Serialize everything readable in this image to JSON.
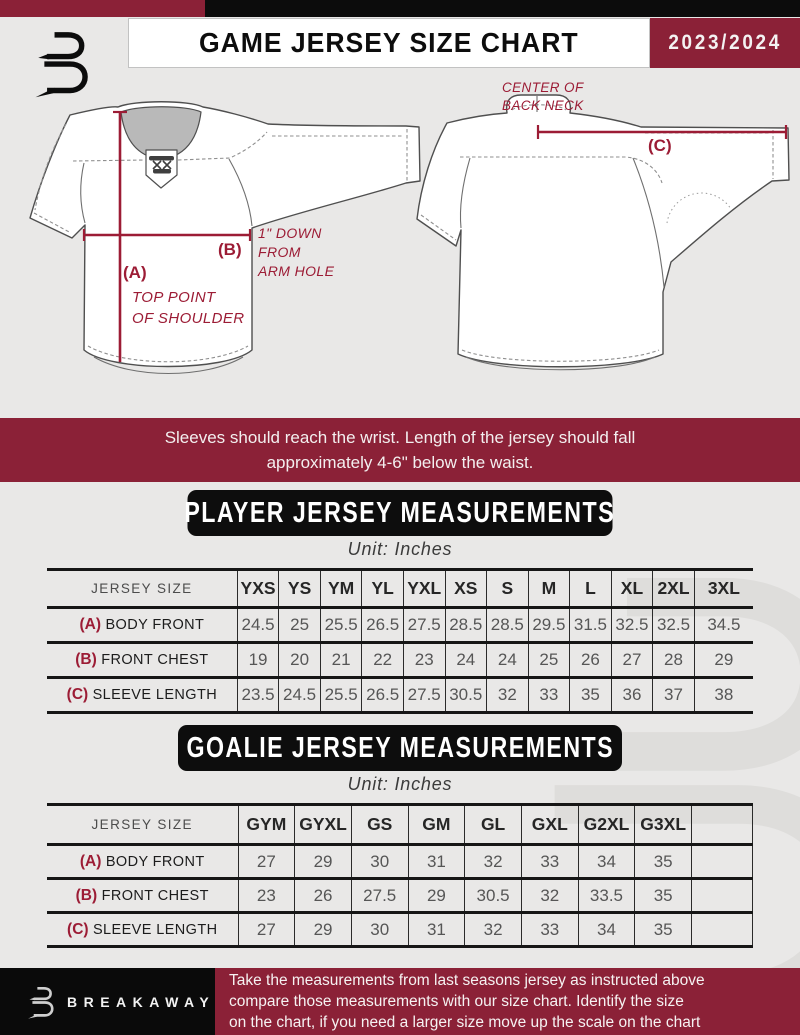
{
  "colors": {
    "maroon_block": "#8B2137",
    "maroon_accent": "#9C1C35",
    "black": "#0C0C0C",
    "background": "#E9E8E7",
    "table_value_text": "#565656"
  },
  "header": {
    "title": "GAME JERSEY SIZE CHART",
    "season": "2023/2024",
    "logo": "breakaway-b-monogram"
  },
  "diagram": {
    "front": {
      "a_tag": "(A)",
      "a_line1": "TOP POINT",
      "a_line2": "OF SHOULDER",
      "b_tag": "(B)",
      "b_line1": "1\" DOWN",
      "b_line2": "FROM",
      "b_line3": "ARM HOLE"
    },
    "back": {
      "c_tag": "(C)",
      "c_line1": "CENTER OF",
      "c_line2": "BACK NECK"
    }
  },
  "banner": {
    "line1": "Sleeves should reach the wrist. Length of the jersey should fall",
    "line2": "approximately 4-6\" below the waist."
  },
  "player_section": {
    "title": "PLAYER JERSEY MEASUREMENTS",
    "unit": "Unit: Inches"
  },
  "player_table": {
    "size_header": "JERSEY SIZE",
    "columns": [
      "YXS",
      "YS",
      "YM",
      "YL",
      "YXL",
      "XS",
      "S",
      "M",
      "L",
      "XL",
      "2XL",
      "3XL"
    ],
    "rows": [
      {
        "key": "(A)",
        "label": "BODY FRONT",
        "values": [
          "24.5",
          "25",
          "25.5",
          "26.5",
          "27.5",
          "28.5",
          "28.5",
          "29.5",
          "31.5",
          "32.5",
          "32.5",
          "34.5"
        ]
      },
      {
        "key": "(B)",
        "label": "FRONT CHEST",
        "values": [
          "19",
          "20",
          "21",
          "22",
          "23",
          "24",
          "24",
          "25",
          "26",
          "27",
          "28",
          "29"
        ]
      },
      {
        "key": "(C)",
        "label": "SLEEVE LENGTH",
        "values": [
          "23.5",
          "24.5",
          "25.5",
          "26.5",
          "27.5",
          "30.5",
          "32",
          "33",
          "35",
          "36",
          "37",
          "38"
        ]
      }
    ]
  },
  "goalie_section": {
    "title": "GOALIE JERSEY MEASUREMENTS",
    "unit": "Unit: Inches"
  },
  "goalie_table": {
    "size_header": "JERSEY SIZE",
    "columns": [
      "GYM",
      "GYXL",
      "GS",
      "GM",
      "GL",
      "GXL",
      "G2XL",
      "G3XL",
      ""
    ],
    "rows": [
      {
        "key": "(A)",
        "label": "BODY FRONT",
        "values": [
          "27",
          "29",
          "30",
          "31",
          "32",
          "33",
          "34",
          "35",
          ""
        ]
      },
      {
        "key": "(B)",
        "label": "FRONT CHEST",
        "values": [
          "23",
          "26",
          "27.5",
          "29",
          "30.5",
          "32",
          "33.5",
          "35",
          ""
        ]
      },
      {
        "key": "(C)",
        "label": "SLEEVE LENGTH",
        "values": [
          "27",
          "29",
          "30",
          "31",
          "32",
          "33",
          "34",
          "35",
          ""
        ]
      }
    ]
  },
  "footer": {
    "brand": "BREAKAWAY",
    "line1": "Take the measurements from last seasons jersey as instructed above",
    "line2": "compare those measurements  with our size chart. Identify the size",
    "line3": "on the chart, if you need a larger size move up the scale on the chart"
  }
}
